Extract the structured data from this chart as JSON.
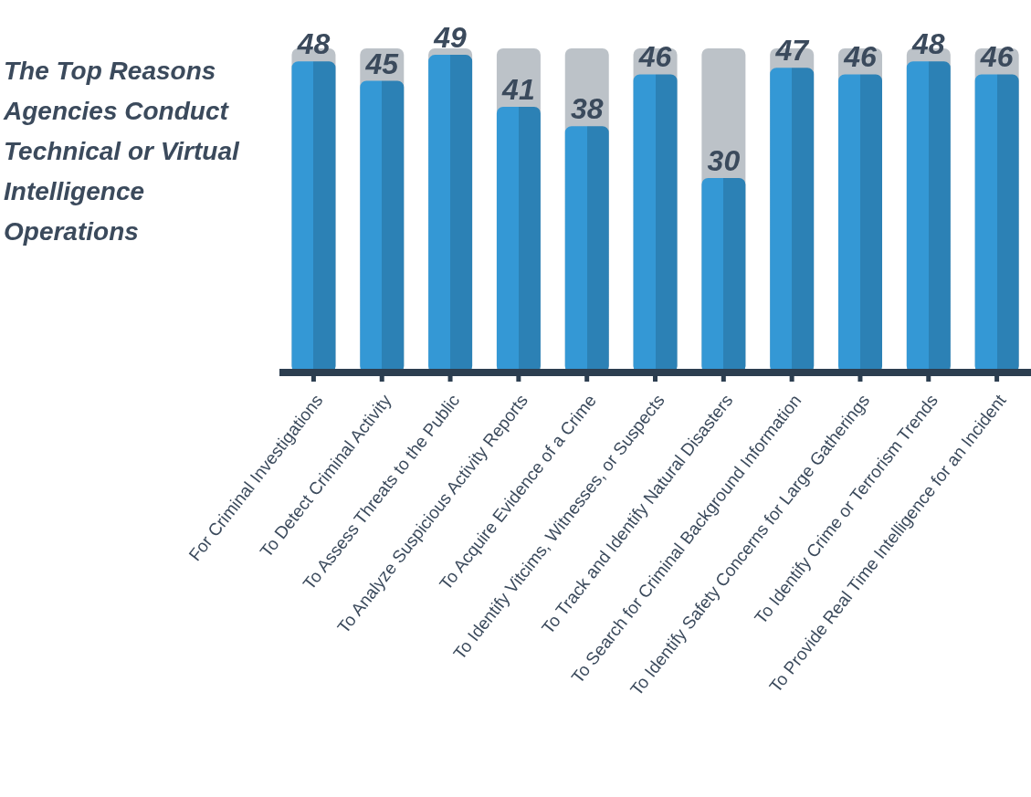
{
  "chart_data": {
    "type": "bar",
    "title": "The Top Reasons Agencies Conduct Technical or Virtual Intelligence Operations",
    "categories": [
      "For Criminal Investigations",
      "To Detect Criminal Activity",
      "To Assess Threats to the Public",
      "To Analyze Suspicious Activity Reports",
      "To Acquire Evidence of a Crime",
      "To Identify Vitcims, Witnesses, or Suspects",
      "To Track and Identify Natural Disasters",
      "To Search for Criminal Background Information",
      "To Identify Safety Concerns for Large Gatherings",
      "To Identify Crime or Terrorism Trends",
      "To Provide Real Time Intelligence for an Incident"
    ],
    "values": [
      48,
      45,
      49,
      41,
      38,
      46,
      30,
      47,
      46,
      48,
      46
    ],
    "color": "#3498d5",
    "ylim": [
      0,
      50
    ],
    "tick_labels": "x",
    "data_labels": true,
    "grid": false,
    "legend": false
  }
}
